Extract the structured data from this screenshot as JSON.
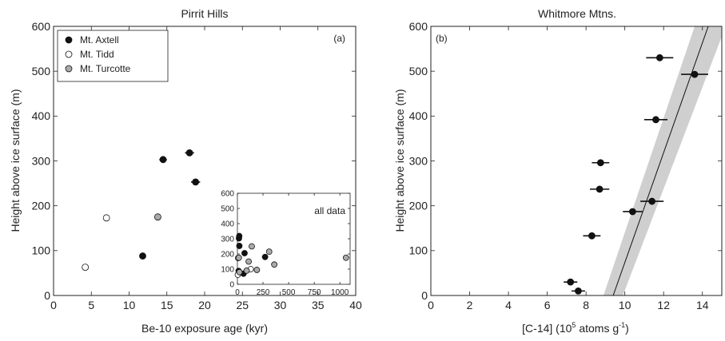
{
  "chart_data": [
    {
      "type": "scatter",
      "panel_label": "(a)",
      "title": "Pirrit Hills",
      "xlabel": "Be-10 exposure age (kyr)",
      "ylabel": "Height above ice surface (m)",
      "xlim": [
        0,
        40
      ],
      "ylim": [
        0,
        600
      ],
      "xticks": [
        0,
        5,
        10,
        15,
        20,
        25,
        30,
        35,
        40
      ],
      "yticks": [
        0,
        100,
        200,
        300,
        400,
        500,
        600
      ],
      "legend_placement": "top-left",
      "series": [
        {
          "name": "Mt. Axtell",
          "fill": "#111111",
          "points": [
            [
              11.8,
              88
            ],
            [
              14.5,
              303
            ],
            [
              18.0,
              318
            ],
            [
              18.8,
              253
            ]
          ],
          "xerr": [
            0.3,
            0.5,
            0.6,
            0.6
          ]
        },
        {
          "name": "Mt. Tidd",
          "fill": "#ffffff",
          "points": [
            [
              4.2,
              63
            ],
            [
              7.0,
              173
            ]
          ]
        },
        {
          "name": "Mt. Turcotte",
          "fill": "#aaaaaa",
          "points": [
            [
              13.8,
              175
            ]
          ]
        }
      ],
      "inset": {
        "label": "all data",
        "xlim": [
          0,
          1100
        ],
        "ylim": [
          0,
          600
        ],
        "xticks": [
          0,
          250,
          500,
          750,
          1000
        ],
        "yticks": [
          0,
          100,
          200,
          300,
          400,
          500,
          600
        ],
        "series": [
          {
            "name": "Mt. Axtell",
            "fill": "#111111",
            "points": [
              [
                12,
                88
              ],
              [
                15,
                303
              ],
              [
                18,
                318
              ],
              [
                19,
                253
              ],
              [
                60,
                70
              ],
              [
                70,
                205
              ],
              [
                270,
                180
              ]
            ]
          },
          {
            "name": "Mt. Tidd",
            "fill": "#ffffff",
            "points": [
              [
                4,
                63
              ],
              [
                7,
                173
              ],
              [
                130,
                100
              ]
            ]
          },
          {
            "name": "Mt. Turcotte",
            "fill": "#aaaaaa",
            "points": [
              [
                14,
                175
              ],
              [
                20,
                80
              ],
              [
                90,
                90
              ],
              [
                110,
                150
              ],
              [
                140,
                250
              ],
              [
                190,
                95
              ],
              [
                310,
                215
              ],
              [
                360,
                130
              ],
              [
                1060,
                175
              ]
            ]
          }
        ]
      }
    },
    {
      "type": "scatter",
      "panel_label": "(b)",
      "title": "Whitmore Mtns.",
      "xlabel_main": "[C-14] (10",
      "xlabel_sup": "5",
      "xlabel_after": " atoms g",
      "xlabel_sup2": "-1",
      "xlabel_end": ")",
      "ylabel": "Height above ice surface (m)",
      "xlim": [
        0,
        15
      ],
      "ylim": [
        0,
        600
      ],
      "xticks": [
        0,
        2,
        4,
        6,
        8,
        10,
        12,
        14
      ],
      "yticks": [
        0,
        100,
        200,
        300,
        400,
        500,
        600
      ],
      "series": [
        {
          "name": "",
          "fill": "#111111",
          "points": [
            [
              7.2,
              30
            ],
            [
              7.6,
              10
            ],
            [
              8.3,
              133
            ],
            [
              10.4,
              187
            ],
            [
              11.4,
              210
            ],
            [
              8.7,
              237
            ],
            [
              8.75,
              296
            ],
            [
              11.6,
              392
            ],
            [
              11.8,
              530
            ],
            [
              13.6,
              493
            ]
          ],
          "xerr": [
            0.35,
            0.35,
            0.45,
            0.5,
            0.6,
            0.5,
            0.45,
            0.6,
            0.7,
            0.7
          ]
        }
      ],
      "fit_line": [
        [
          9.4,
          0
        ],
        [
          14.3,
          600
        ]
      ],
      "fit_band": {
        "lower": [
          [
            8.9,
            0
          ],
          [
            13.6,
            600
          ]
        ],
        "upper": [
          [
            9.9,
            0
          ],
          [
            15.2,
            600
          ]
        ]
      }
    }
  ]
}
